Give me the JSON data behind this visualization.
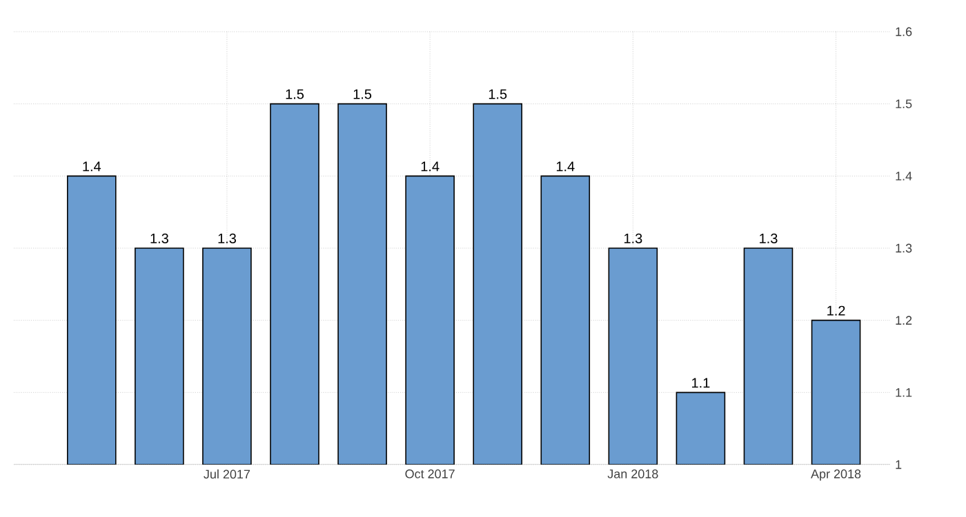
{
  "chart_data": {
    "type": "bar",
    "categories": [
      null,
      null,
      "Jul 2017",
      null,
      null,
      "Oct 2017",
      null,
      null,
      "Jan 2018",
      null,
      null,
      "Apr 2018"
    ],
    "values": [
      1.4,
      1.3,
      1.3,
      1.5,
      1.5,
      1.4,
      1.5,
      1.4,
      1.3,
      1.1,
      1.3,
      1.2
    ],
    "color": "#6a9cd0",
    "ylim": [
      1,
      1.6
    ],
    "yticks": [
      1,
      1.1,
      1.2,
      1.3,
      1.4,
      1.5,
      1.6
    ],
    "grid": true,
    "data_labels": true
  }
}
